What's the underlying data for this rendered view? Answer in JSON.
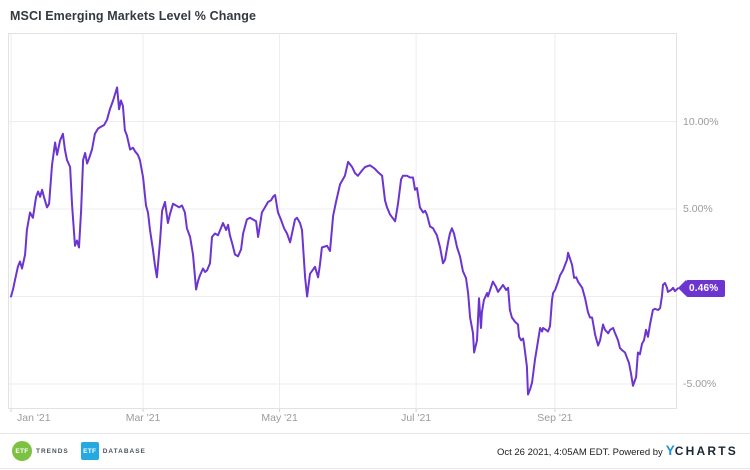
{
  "header": {
    "title": "MSCI Emerging Markets Level % Change"
  },
  "chart_data": {
    "type": "line",
    "title": "MSCI Emerging Markets Level % Change",
    "x_axis": {
      "start_date": "2021-01-01",
      "end_date": "2021-10-26",
      "ticks": [
        {
          "label": "Jan '21",
          "day": 0
        },
        {
          "label": "Mar '21",
          "day": 59
        },
        {
          "label": "May '21",
          "day": 120
        },
        {
          "label": "Jul '21",
          "day": 181
        },
        {
          "label": "Sep '21",
          "day": 243
        }
      ]
    },
    "y_axis": {
      "unit": "%",
      "ticks": [
        {
          "label": "10.00%",
          "value": 10
        },
        {
          "label": "5.00%",
          "value": 5
        },
        {
          "label": "-5.00%",
          "value": -5
        }
      ],
      "gridline_values": [
        10,
        5,
        0,
        -5
      ],
      "ylim": [
        -6.4,
        15.1
      ]
    },
    "grid": true,
    "legend": "none",
    "last_value": 0.46,
    "last_value_label": "0.46%",
    "series": [
      {
        "name": "MSCI Emerging Markets Level % Change",
        "color": "#6c35d0",
        "points": [
          [
            0,
            0
          ],
          [
            0.9,
            0.4
          ],
          [
            1.8,
            0.95
          ],
          [
            3.1,
            1.7
          ],
          [
            4,
            2
          ],
          [
            4.9,
            1.6
          ],
          [
            6.3,
            2.4
          ],
          [
            7.1,
            3.8
          ],
          [
            8.5,
            4.8
          ],
          [
            9.8,
            4.5
          ],
          [
            11.2,
            5.7
          ],
          [
            12.1,
            6
          ],
          [
            13,
            5.7
          ],
          [
            13.9,
            6.1
          ],
          [
            14.7,
            5.7
          ],
          [
            16.1,
            5.1
          ],
          [
            17,
            5.3
          ],
          [
            18.3,
            7.5
          ],
          [
            19.7,
            8.8
          ],
          [
            20.6,
            8.1
          ],
          [
            21.9,
            8.9
          ],
          [
            23.2,
            9.3
          ],
          [
            24.1,
            8.4
          ],
          [
            25,
            7.8
          ],
          [
            26.4,
            7.4
          ],
          [
            27.3,
            5.2
          ],
          [
            28.6,
            2.9
          ],
          [
            29.5,
            3.2
          ],
          [
            30.4,
            2.8
          ],
          [
            31.3,
            4.9
          ],
          [
            32.2,
            7.8
          ],
          [
            33.1,
            8.2
          ],
          [
            34,
            7.6
          ],
          [
            34.9,
            7.9
          ],
          [
            36.2,
            8.4
          ],
          [
            37.5,
            9.3
          ],
          [
            38.9,
            9.6
          ],
          [
            40.2,
            9.7
          ],
          [
            41.6,
            9.8
          ],
          [
            42.9,
            10.1
          ],
          [
            44.2,
            10.7
          ],
          [
            45.6,
            11.2
          ],
          [
            47.4,
            11.95
          ],
          [
            48.3,
            10.7
          ],
          [
            49.1,
            11.2
          ],
          [
            50,
            10.9
          ],
          [
            50.9,
            9.5
          ],
          [
            51.8,
            9.2
          ],
          [
            53.2,
            8.4
          ],
          [
            54.5,
            8.5
          ],
          [
            55.4,
            8.3
          ],
          [
            56.7,
            8.1
          ],
          [
            57.6,
            7.8
          ],
          [
            59,
            6.8
          ],
          [
            60.3,
            5.2
          ],
          [
            61.2,
            4.8
          ],
          [
            62.1,
            3.8
          ],
          [
            63.4,
            2.7
          ],
          [
            64.3,
            1.8
          ],
          [
            65.2,
            1.1
          ],
          [
            66.6,
            3.2
          ],
          [
            67.5,
            4.9
          ],
          [
            68.8,
            5.4
          ],
          [
            70.1,
            4.2
          ],
          [
            71,
            4.7
          ],
          [
            72.4,
            5.3
          ],
          [
            73.7,
            5.2
          ],
          [
            75.1,
            5.1
          ],
          [
            76.4,
            5.2
          ],
          [
            77.7,
            4.8
          ],
          [
            78.6,
            3.9
          ],
          [
            80,
            3.4
          ],
          [
            81.3,
            2.4
          ],
          [
            82.7,
            0.4
          ],
          [
            83.6,
            0.9
          ],
          [
            84.4,
            1.2
          ],
          [
            85.8,
            1.6
          ],
          [
            86.7,
            1.4
          ],
          [
            87.6,
            1.5
          ],
          [
            88.9,
            1.9
          ],
          [
            89.8,
            3.4
          ],
          [
            91.1,
            3.6
          ],
          [
            92.5,
            3.5
          ],
          [
            93.8,
            3.9
          ],
          [
            94.7,
            4.2
          ],
          [
            96.1,
            3.8
          ],
          [
            97,
            4.1
          ],
          [
            97.8,
            3.5
          ],
          [
            98.7,
            3.1
          ],
          [
            100.1,
            2.4
          ],
          [
            101.4,
            2.3
          ],
          [
            102.8,
            2.7
          ],
          [
            103.7,
            3.6
          ],
          [
            105.4,
            4.4
          ],
          [
            106.8,
            4.5
          ],
          [
            108.1,
            4.4
          ],
          [
            109.5,
            4.3
          ],
          [
            110.4,
            3.4
          ],
          [
            112.1,
            4.8
          ],
          [
            113.5,
            5.1
          ],
          [
            114.8,
            5.4
          ],
          [
            116.2,
            5.5
          ],
          [
            117.1,
            5.7
          ],
          [
            118,
            5.8
          ],
          [
            119.3,
            4.8
          ],
          [
            120.6,
            4.4
          ],
          [
            122,
            3.9
          ],
          [
            123.3,
            3.6
          ],
          [
            124.7,
            3.1
          ],
          [
            126.9,
            4.4
          ],
          [
            127.8,
            4.5
          ],
          [
            129.1,
            4.2
          ],
          [
            130,
            3.8
          ],
          [
            131.4,
            1.1
          ],
          [
            132.3,
            0
          ],
          [
            133.6,
            1.3
          ],
          [
            135.8,
            1.7
          ],
          [
            137.2,
            1.1
          ],
          [
            138,
            1.8
          ],
          [
            138.9,
            2.8
          ],
          [
            141.2,
            2.9
          ],
          [
            142.5,
            2.6
          ],
          [
            143.9,
            4.6
          ],
          [
            145.2,
            5.4
          ],
          [
            147,
            6.4
          ],
          [
            149.2,
            6.9
          ],
          [
            150.6,
            7.7
          ],
          [
            152.4,
            7.4
          ],
          [
            153.7,
            7.05
          ],
          [
            155,
            6.9
          ],
          [
            156.8,
            7.2
          ],
          [
            158.2,
            7.4
          ],
          [
            160.4,
            7.5
          ],
          [
            162.6,
            7.3
          ],
          [
            164,
            7.1
          ],
          [
            165.8,
            6.9
          ],
          [
            167.1,
            5.5
          ],
          [
            168,
            5.1
          ],
          [
            169.3,
            4.7
          ],
          [
            171.6,
            4.3
          ],
          [
            172.9,
            5.3
          ],
          [
            174.3,
            6.7
          ],
          [
            175.1,
            6.9
          ],
          [
            176.9,
            6.9
          ],
          [
            178.3,
            6.8
          ],
          [
            179.6,
            6.8
          ],
          [
            180.5,
            6.1
          ],
          [
            181.4,
            6.2
          ],
          [
            182.7,
            5.1
          ],
          [
            184.1,
            4.8
          ],
          [
            185,
            4.9
          ],
          [
            185.9,
            4.65
          ],
          [
            187.2,
            4
          ],
          [
            188.6,
            3.9
          ],
          [
            189.4,
            3.7
          ],
          [
            190.3,
            3.5
          ],
          [
            191.7,
            2.8
          ],
          [
            193,
            1.9
          ],
          [
            193.9,
            2.1
          ],
          [
            195.3,
            3.1
          ],
          [
            196.1,
            3.6
          ],
          [
            197,
            3.9
          ],
          [
            197.9,
            3.6
          ],
          [
            199.3,
            2.8
          ],
          [
            200.6,
            2.3
          ],
          [
            201.9,
            1.45
          ],
          [
            203.3,
            1.05
          ],
          [
            204.2,
            0.2
          ],
          [
            205.1,
            -1.2
          ],
          [
            206.4,
            -2.1
          ],
          [
            206.9,
            -3.2
          ],
          [
            208.2,
            -2.5
          ],
          [
            209.1,
            -0.1
          ],
          [
            210,
            -1.8
          ],
          [
            210.4,
            -0.9
          ],
          [
            211.3,
            -0.2
          ],
          [
            212.7,
            0.2
          ],
          [
            213.1,
            0
          ],
          [
            214.5,
            0.55
          ],
          [
            215.3,
            0.85
          ],
          [
            216.7,
            0.55
          ],
          [
            217.6,
            0.26
          ],
          [
            218.9,
            0.5
          ],
          [
            219.8,
            0.66
          ],
          [
            221.2,
            0.37
          ],
          [
            222.1,
            0.5
          ],
          [
            222.9,
            -0.77
          ],
          [
            223.8,
            -1.2
          ],
          [
            225.2,
            -1.45
          ],
          [
            226.5,
            -1.6
          ],
          [
            227,
            -2.3
          ],
          [
            227.9,
            -2.5
          ],
          [
            228.8,
            -2.4
          ],
          [
            229.2,
            -2.7
          ],
          [
            230.5,
            -4
          ],
          [
            231,
            -5.6
          ],
          [
            231.9,
            -5.3
          ],
          [
            232.8,
            -4.9
          ],
          [
            234.1,
            -3.6
          ],
          [
            235,
            -2.9
          ],
          [
            236.4,
            -1.8
          ],
          [
            237.3,
            -2
          ],
          [
            237.7,
            -1.8
          ],
          [
            239,
            -1.9
          ],
          [
            239.9,
            -2
          ],
          [
            240.8,
            -1.7
          ],
          [
            241.7,
            -0.2
          ],
          [
            242.2,
            0.2
          ],
          [
            243.1,
            0.37
          ],
          [
            244.4,
            0.83
          ],
          [
            245.3,
            1.2
          ],
          [
            246.6,
            1.5
          ],
          [
            247.5,
            1.8
          ],
          [
            248.4,
            2.1
          ],
          [
            248.9,
            2.5
          ],
          [
            250.7,
            1.8
          ],
          [
            251.6,
            1.06
          ],
          [
            252.5,
            1.1
          ],
          [
            253.4,
            0.83
          ],
          [
            255.2,
            0.5
          ],
          [
            256.5,
            -0.1
          ],
          [
            257.8,
            -0.9
          ],
          [
            258.7,
            -1.2
          ],
          [
            259.6,
            -1.2
          ],
          [
            261,
            -2.2
          ],
          [
            262.3,
            -2.8
          ],
          [
            263.2,
            -2.5
          ],
          [
            264.5,
            -1.6
          ],
          [
            265.4,
            -1.9
          ],
          [
            266.8,
            -2.1
          ],
          [
            267.7,
            -1.9
          ],
          [
            269,
            -1.8
          ],
          [
            269.9,
            -2.1
          ],
          [
            271.2,
            -2.5
          ],
          [
            272.1,
            -2.95
          ],
          [
            273,
            -3.06
          ],
          [
            274.3,
            -3.2
          ],
          [
            275.2,
            -3.5
          ],
          [
            276.1,
            -3.8
          ],
          [
            277,
            -4.4
          ],
          [
            277.9,
            -5.1
          ],
          [
            279.3,
            -4.6
          ],
          [
            280.1,
            -3.2
          ],
          [
            281,
            -3.3
          ],
          [
            281.9,
            -2.7
          ],
          [
            282.8,
            -2.5
          ],
          [
            283.7,
            -1.9
          ],
          [
            284.6,
            -2.3
          ],
          [
            285.5,
            -1.6
          ],
          [
            286.8,
            -0.77
          ],
          [
            287.7,
            -0.7
          ],
          [
            289.1,
            -0.77
          ],
          [
            290,
            -0.66
          ],
          [
            290.8,
            0
          ],
          [
            291.3,
            0.66
          ],
          [
            292.2,
            0.77
          ],
          [
            293.1,
            0.5
          ],
          [
            293.5,
            0.26
          ],
          [
            294.9,
            0.37
          ],
          [
            295.8,
            0.5
          ],
          [
            296.6,
            0.31
          ],
          [
            298,
            0.46
          ]
        ]
      }
    ],
    "colors": {
      "line": "#6c35d0",
      "badge_bg": "#6c35d0",
      "badge_text": "#ffffff",
      "gridline": "#ededed",
      "plot_border": "#e2e2e2",
      "axis_label": "#9b9b9b"
    }
  },
  "footer": {
    "logos": [
      {
        "name": "ETF Trends",
        "badge_text": "ETF",
        "label": "TRENDS",
        "color": "#7cc142",
        "shape": "circle"
      },
      {
        "name": "ETF Database",
        "badge_text": "ETF",
        "label": "DATABASE",
        "color": "#25a9e0",
        "shape": "square"
      }
    ],
    "timestamp": "Oct 26 2021, 4:05AM EDT. Powered by",
    "brand": {
      "y": "Y",
      "rest": "CHARTS",
      "y_color": "#2191d9",
      "rest_color": "#1b2733"
    }
  }
}
